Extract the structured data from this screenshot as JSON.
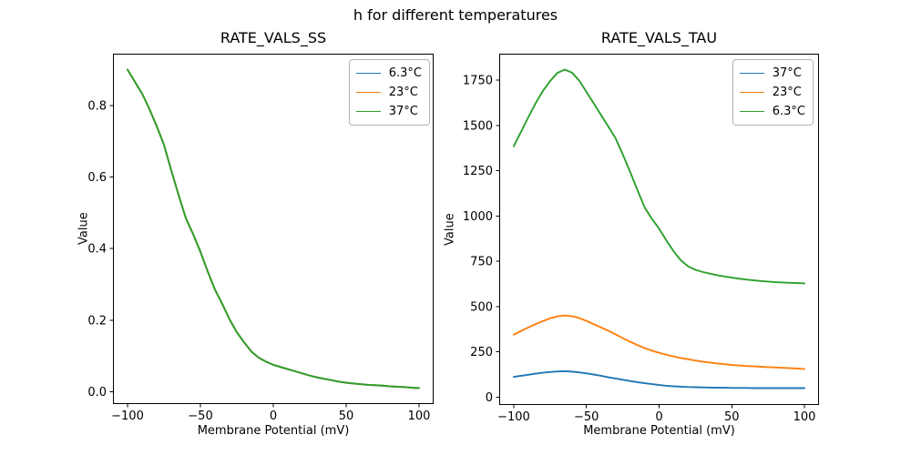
{
  "figure": {
    "suptitle": "h for different temperatures",
    "background": "#ffffff",
    "text_color": "#000000",
    "axis_color": "#000000"
  },
  "chart_data": [
    {
      "type": "line",
      "title": "RATE_VALS_SS",
      "xlabel": "Membrane Potential (mV)",
      "ylabel": "Value",
      "xlim": [
        -110,
        110
      ],
      "ylim": [
        -0.0345,
        0.9445
      ],
      "xticks": [
        -100,
        -50,
        0,
        50,
        100
      ],
      "xtick_labels": [
        "−100",
        "−50",
        "0",
        "50",
        "100"
      ],
      "yticks": [
        0.0,
        0.2,
        0.4,
        0.6,
        0.8
      ],
      "ytick_labels": [
        "0.0",
        "0.2",
        "0.4",
        "0.6",
        "0.8"
      ],
      "grid": false,
      "legend_position": "upper right",
      "x": [
        -100,
        -95,
        -90,
        -85,
        -80,
        -75,
        -70,
        -65,
        -60,
        -55,
        -50,
        -45,
        -40,
        -35,
        -30,
        -25,
        -20,
        -15,
        -10,
        -5,
        0,
        5,
        10,
        15,
        20,
        25,
        30,
        35,
        40,
        45,
        50,
        55,
        60,
        65,
        70,
        75,
        80,
        85,
        90,
        95,
        100
      ],
      "series": [
        {
          "name": "6.3°C",
          "color": "#1f77b4",
          "values": [
            0.9,
            0.866,
            0.833,
            0.79,
            0.742,
            0.69,
            0.618,
            0.55,
            0.485,
            0.44,
            0.391,
            0.336,
            0.285,
            0.245,
            0.202,
            0.166,
            0.138,
            0.112,
            0.095,
            0.084,
            0.075,
            0.069,
            0.063,
            0.057,
            0.051,
            0.045,
            0.04,
            0.036,
            0.032,
            0.028,
            0.025,
            0.023,
            0.021,
            0.019,
            0.018,
            0.017,
            0.015,
            0.014,
            0.013,
            0.011,
            0.01
          ]
        },
        {
          "name": "23°C",
          "color": "#ff7f0e",
          "values": [
            0.9,
            0.866,
            0.833,
            0.79,
            0.742,
            0.69,
            0.618,
            0.55,
            0.485,
            0.44,
            0.391,
            0.336,
            0.285,
            0.245,
            0.202,
            0.166,
            0.138,
            0.112,
            0.095,
            0.084,
            0.075,
            0.069,
            0.063,
            0.057,
            0.051,
            0.045,
            0.04,
            0.036,
            0.032,
            0.028,
            0.025,
            0.023,
            0.021,
            0.019,
            0.018,
            0.017,
            0.015,
            0.014,
            0.013,
            0.011,
            0.01
          ]
        },
        {
          "name": "37°C",
          "color": "#2ca02c",
          "values": [
            0.9,
            0.866,
            0.833,
            0.79,
            0.742,
            0.69,
            0.618,
            0.55,
            0.485,
            0.44,
            0.391,
            0.336,
            0.285,
            0.245,
            0.202,
            0.166,
            0.138,
            0.112,
            0.095,
            0.084,
            0.075,
            0.069,
            0.063,
            0.057,
            0.051,
            0.045,
            0.04,
            0.036,
            0.032,
            0.028,
            0.025,
            0.023,
            0.021,
            0.019,
            0.018,
            0.017,
            0.015,
            0.014,
            0.013,
            0.011,
            0.01
          ]
        }
      ],
      "note": "All three temperature curves overlap exactly; only the last-drawn green curve is visible."
    },
    {
      "type": "line",
      "title": "RATE_VALS_TAU",
      "xlabel": "Membrane Potential (mV)",
      "ylabel": "Value",
      "xlim": [
        -110,
        110
      ],
      "ylim": [
        -43,
        1896
      ],
      "xticks": [
        -100,
        -50,
        0,
        50,
        100
      ],
      "xtick_labels": [
        "−100",
        "−50",
        "0",
        "50",
        "100"
      ],
      "yticks": [
        0,
        250,
        500,
        750,
        1000,
        1250,
        1500,
        1750
      ],
      "ytick_labels": [
        "0",
        "250",
        "500",
        "750",
        "1000",
        "1250",
        "1500",
        "1750"
      ],
      "grid": false,
      "legend_position": "upper right",
      "x": [
        -100,
        -95,
        -90,
        -85,
        -80,
        -75,
        -70,
        -65,
        -60,
        -55,
        -50,
        -45,
        -40,
        -35,
        -30,
        -25,
        -20,
        -15,
        -10,
        -5,
        0,
        5,
        10,
        15,
        20,
        25,
        30,
        35,
        40,
        45,
        50,
        55,
        60,
        65,
        70,
        75,
        80,
        85,
        90,
        95,
        100
      ],
      "series": [
        {
          "name": "37°C",
          "color": "#1f77b4",
          "values": [
            112,
            118,
            124,
            130,
            135,
            139,
            142,
            143,
            141,
            137,
            131,
            125,
            118,
            110,
            103,
            96,
            89,
            83,
            77,
            72,
            67,
            63,
            60,
            58,
            56,
            55,
            54,
            53,
            52,
            52,
            51,
            51,
            51,
            50,
            50,
            50,
            50,
            50,
            50,
            50,
            50
          ]
        },
        {
          "name": "23°C",
          "color": "#ff7f0e",
          "values": [
            345,
            365,
            385,
            403,
            420,
            435,
            446,
            451,
            447,
            437,
            421,
            403,
            385,
            367,
            347,
            326,
            306,
            288,
            271,
            257,
            245,
            234,
            225,
            216,
            209,
            202,
            196,
            191,
            186,
            182,
            178,
            175,
            172,
            170,
            168,
            166,
            164,
            162,
            160,
            158,
            155
          ]
        },
        {
          "name": "6.3°C",
          "color": "#2ca02c",
          "values": [
            1385,
            1465,
            1545,
            1622,
            1690,
            1745,
            1790,
            1808,
            1792,
            1748,
            1685,
            1622,
            1558,
            1495,
            1430,
            1340,
            1245,
            1145,
            1048,
            985,
            930,
            865,
            805,
            755,
            722,
            703,
            691,
            682,
            673,
            666,
            660,
            654,
            649,
            645,
            641,
            638,
            635,
            633,
            631,
            630,
            628
          ]
        }
      ]
    }
  ]
}
